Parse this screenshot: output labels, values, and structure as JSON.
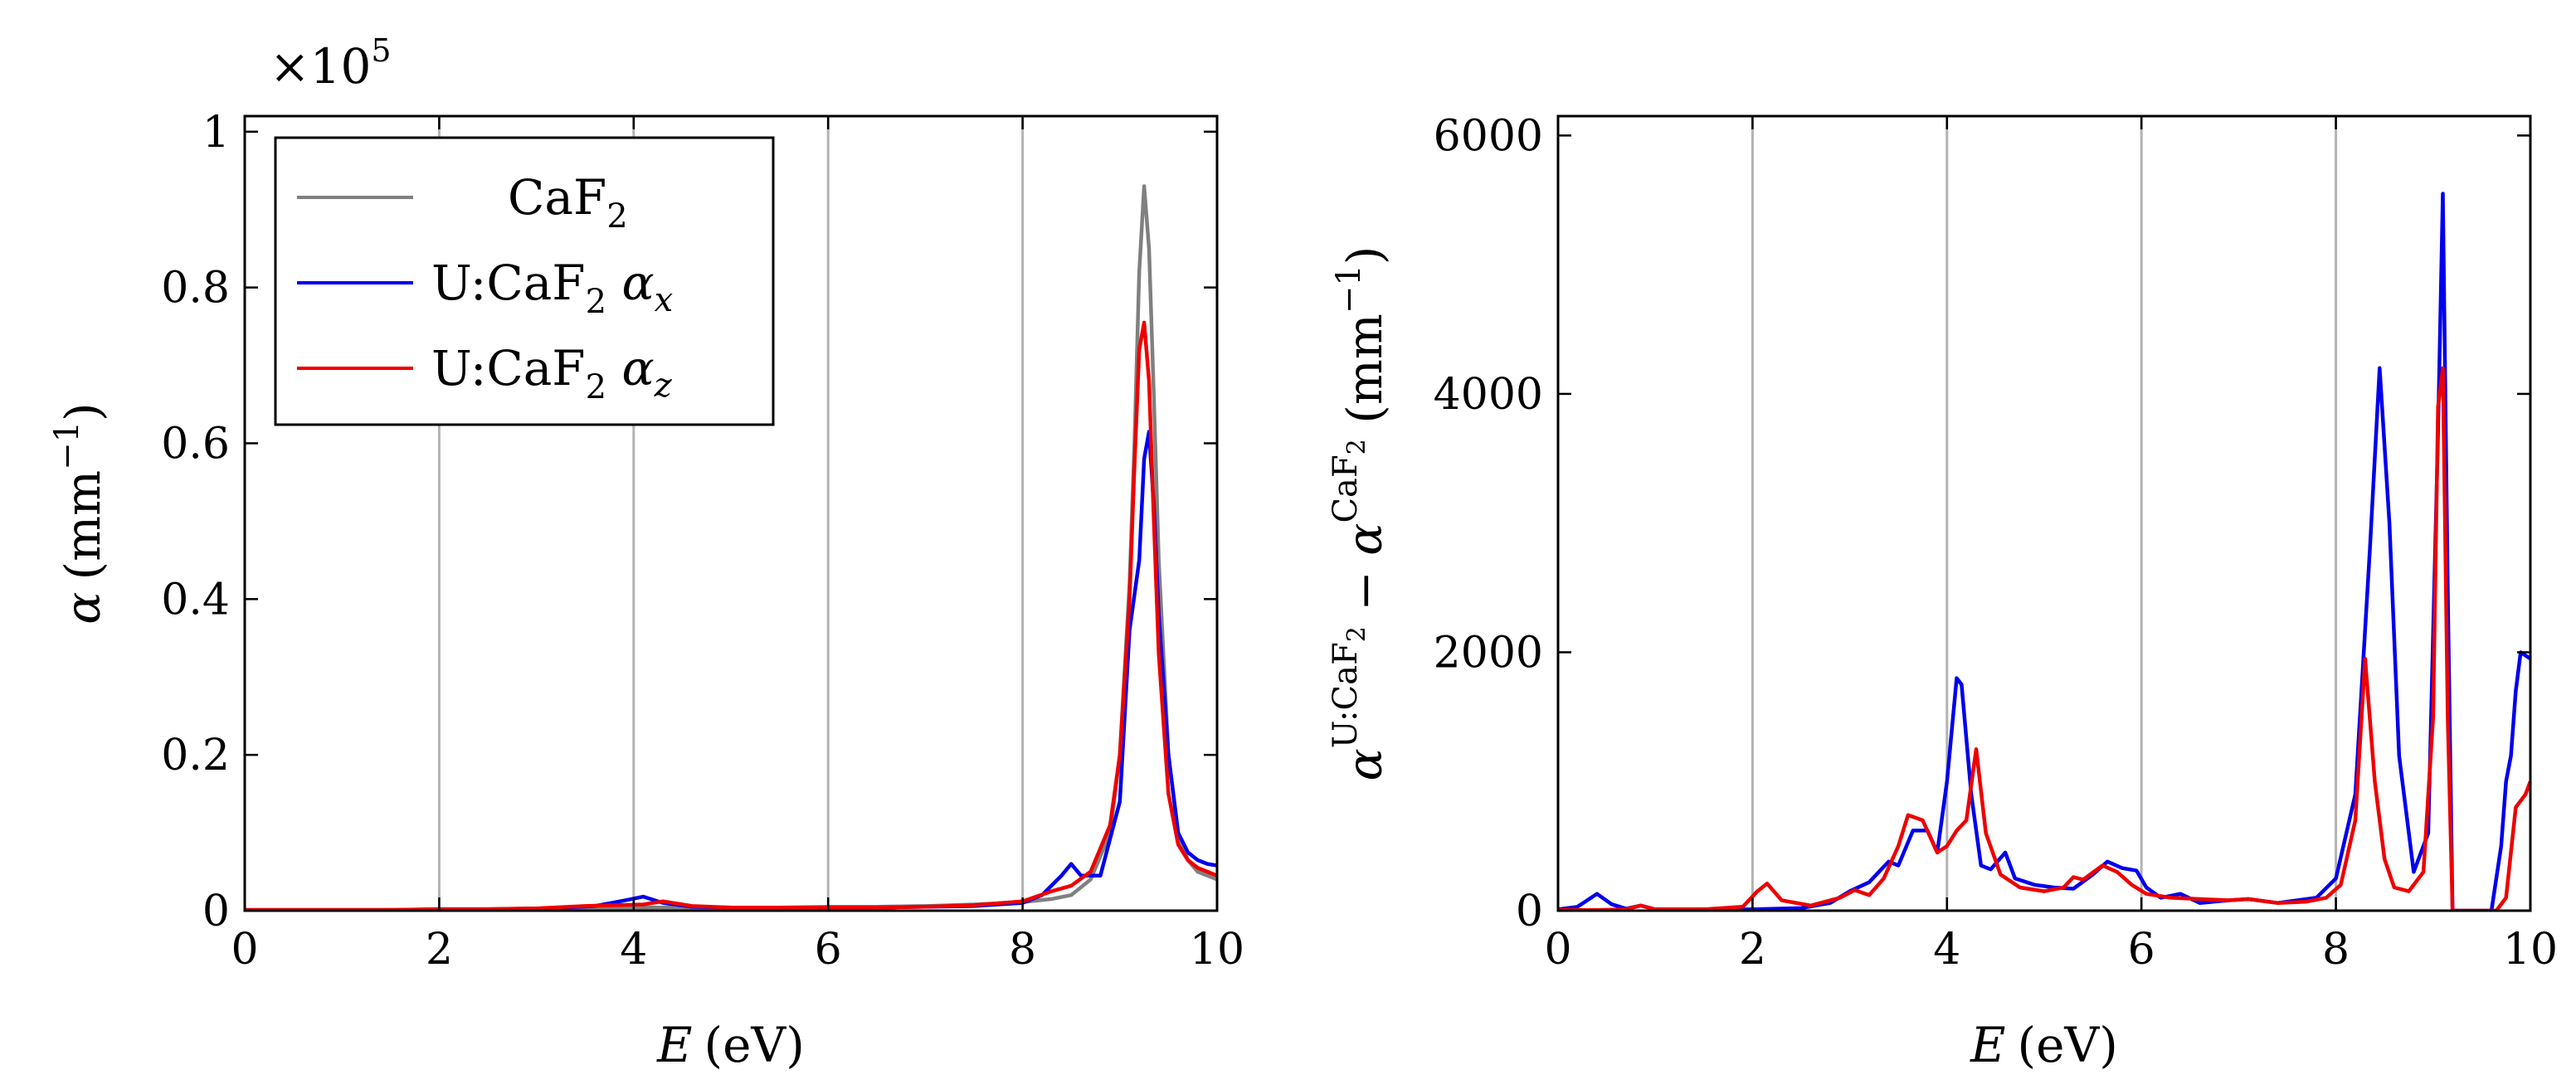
{
  "chart_data": [
    {
      "type": "line",
      "panel": "left",
      "title": "",
      "xlabel": "E (eV)",
      "xlabel_parts": {
        "var": "E",
        "unit": "(eV)"
      },
      "ylabel": "α (mm⁻¹)",
      "ylabel_parts": {
        "var": "α",
        "unit": "(mm",
        "exp": "−1",
        "close": ")"
      },
      "y_multiplier": "×10^5",
      "y_multiplier_parts": {
        "base": "×10",
        "exp": "5"
      },
      "xlim": [
        0,
        10
      ],
      "ylim": [
        0,
        1.02
      ],
      "xticks": [
        0,
        2,
        4,
        6,
        8,
        10
      ],
      "xtick_labels": [
        "0",
        "2",
        "4",
        "6",
        "8",
        "10"
      ],
      "yticks": [
        0,
        0.2,
        0.4,
        0.6,
        0.8,
        1
      ],
      "ytick_labels": [
        "0",
        "0.2",
        "0.4",
        "0.6",
        "0.8",
        "1"
      ],
      "grid": "x",
      "legend_position": "top-left",
      "series": [
        {
          "name": "CaF2",
          "label_parts": {
            "pre": "CaF",
            "sub": "2",
            "post": "",
            "greek": "",
            "gsub": ""
          },
          "color": "#808080",
          "x": [
            0,
            0.5,
            1,
            1.5,
            2,
            2.5,
            3,
            3.5,
            4,
            4.5,
            5,
            5.5,
            6,
            6.5,
            7,
            7.5,
            8,
            8.3,
            8.5,
            8.7,
            8.9,
            9.0,
            9.1,
            9.15,
            9.2,
            9.25,
            9.3,
            9.35,
            9.4,
            9.5,
            9.6,
            9.7,
            9.8,
            9.9,
            10
          ],
          "y": [
            0.001,
            0.001,
            0.001,
            0.001,
            0.002,
            0.002,
            0.003,
            0.003,
            0.004,
            0.004,
            0.004,
            0.004,
            0.005,
            0.005,
            0.006,
            0.008,
            0.011,
            0.015,
            0.02,
            0.04,
            0.1,
            0.2,
            0.42,
            0.6,
            0.82,
            0.93,
            0.85,
            0.66,
            0.45,
            0.2,
            0.1,
            0.065,
            0.05,
            0.045,
            0.04
          ]
        },
        {
          "name": "U:CaF2 αx",
          "label_parts": {
            "pre": "U:CaF",
            "sub": "2",
            "post": " ",
            "greek": "α",
            "gsub": "x"
          },
          "color": "#0000ee",
          "x": [
            0,
            0.5,
            1,
            1.5,
            2,
            2.5,
            3,
            3.3,
            3.6,
            3.9,
            4.1,
            4.3,
            4.6,
            5,
            5.5,
            6,
            6.5,
            7,
            7.5,
            8,
            8.2,
            8.4,
            8.5,
            8.6,
            8.8,
            9.0,
            9.1,
            9.2,
            9.25,
            9.3,
            9.35,
            9.4,
            9.5,
            9.6,
            9.7,
            9.8,
            9.9,
            10
          ],
          "y": [
            0.001,
            0.001,
            0.001,
            0.001,
            0.001,
            0.001,
            0.002,
            0.004,
            0.006,
            0.013,
            0.018,
            0.01,
            0.005,
            0.004,
            0.004,
            0.004,
            0.004,
            0.005,
            0.006,
            0.01,
            0.02,
            0.045,
            0.06,
            0.045,
            0.045,
            0.14,
            0.36,
            0.45,
            0.58,
            0.615,
            0.52,
            0.38,
            0.2,
            0.1,
            0.075,
            0.065,
            0.06,
            0.058
          ]
        },
        {
          "name": "U:CaF2 αz",
          "label_parts": {
            "pre": "U:CaF",
            "sub": "2",
            "post": " ",
            "greek": "α",
            "gsub": "z"
          },
          "color": "#ee0000",
          "x": [
            0,
            0.5,
            1,
            1.5,
            2,
            2.5,
            3,
            3.5,
            3.8,
            4.1,
            4.3,
            4.6,
            5,
            5.5,
            6,
            6.5,
            7,
            7.5,
            8,
            8.3,
            8.5,
            8.7,
            8.9,
            9.0,
            9.1,
            9.15,
            9.2,
            9.25,
            9.3,
            9.35,
            9.4,
            9.5,
            9.6,
            9.7,
            9.8,
            9.9,
            10
          ],
          "y": [
            0.001,
            0.001,
            0.001,
            0.001,
            0.002,
            0.002,
            0.003,
            0.006,
            0.007,
            0.008,
            0.012,
            0.006,
            0.004,
            0.004,
            0.004,
            0.004,
            0.005,
            0.007,
            0.012,
            0.025,
            0.032,
            0.05,
            0.11,
            0.2,
            0.4,
            0.57,
            0.72,
            0.755,
            0.68,
            0.5,
            0.33,
            0.15,
            0.085,
            0.065,
            0.055,
            0.05,
            0.045
          ]
        }
      ]
    },
    {
      "type": "line",
      "panel": "right",
      "title": "",
      "xlabel": "E (eV)",
      "xlabel_parts": {
        "var": "E",
        "unit": "(eV)"
      },
      "ylabel": "α^{U:CaF2} − α^{CaF2} (mm⁻¹)",
      "ylabel_parts": {
        "a1": "α",
        "sup1": "U:CaF",
        "sup1sub": "2",
        "minus": " − ",
        "a2": "α",
        "sup2": "CaF",
        "sup2sub": "2",
        "unit": " (mm",
        "exp": "−1",
        "close": ")"
      },
      "xlim": [
        0,
        10
      ],
      "ylim": [
        0,
        6150
      ],
      "xticks": [
        0,
        2,
        4,
        6,
        8,
        10
      ],
      "xtick_labels": [
        "0",
        "2",
        "4",
        "6",
        "8",
        "10"
      ],
      "yticks": [
        0,
        2000,
        4000,
        6000
      ],
      "ytick_labels": [
        "0",
        "2000",
        "4000",
        "6000"
      ],
      "grid": "x",
      "series": [
        {
          "name": "U:CaF2 αx",
          "color": "#0000ee",
          "x": [
            0,
            0.2,
            0.4,
            0.55,
            0.7,
            0.85,
            1.0,
            1.5,
            2,
            2.5,
            2.8,
            3.0,
            3.2,
            3.4,
            3.5,
            3.65,
            3.8,
            3.9,
            4.0,
            4.1,
            4.15,
            4.25,
            4.35,
            4.45,
            4.6,
            4.7,
            4.9,
            5.1,
            5.3,
            5.5,
            5.65,
            5.8,
            5.95,
            6.05,
            6.2,
            6.4,
            6.6,
            6.9,
            7.1,
            7.4,
            7.8,
            8.0,
            8.2,
            8.35,
            8.45,
            8.55,
            8.65,
            8.8,
            8.95,
            9.05,
            9.1,
            9.15,
            9.2,
            9.6,
            9.7,
            9.75,
            9.8,
            9.85,
            9.9,
            10
          ],
          "y": [
            10,
            30,
            130,
            50,
            15,
            40,
            10,
            10,
            10,
            20,
            60,
            150,
            220,
            380,
            350,
            620,
            620,
            450,
            1000,
            1800,
            1750,
            900,
            350,
            320,
            450,
            250,
            200,
            180,
            170,
            280,
            380,
            330,
            310,
            180,
            100,
            130,
            60,
            80,
            90,
            60,
            100,
            250,
            900,
            2800,
            4200,
            3000,
            1200,
            300,
            600,
            3700,
            5550,
            2500,
            0,
            0,
            500,
            1000,
            1200,
            1700,
            2000,
            1950
          ]
        },
        {
          "name": "U:CaF2 αz",
          "color": "#ee0000",
          "x": [
            0,
            0.4,
            0.7,
            0.85,
            1.0,
            1.5,
            1.9,
            2.05,
            2.15,
            2.3,
            2.6,
            2.9,
            3.05,
            3.2,
            3.35,
            3.5,
            3.6,
            3.75,
            3.9,
            4.0,
            4.1,
            4.2,
            4.3,
            4.4,
            4.55,
            4.75,
            5.0,
            5.2,
            5.3,
            5.4,
            5.6,
            5.75,
            5.9,
            6.05,
            6.3,
            6.6,
            6.9,
            7.1,
            7.4,
            7.7,
            7.9,
            8.05,
            8.2,
            8.3,
            8.4,
            8.5,
            8.6,
            8.75,
            8.9,
            9.0,
            9.05,
            9.1,
            9.15,
            9.2,
            9.65,
            9.75,
            9.85,
            9.95,
            10
          ],
          "y": [
            5,
            5,
            10,
            40,
            10,
            10,
            30,
            150,
            210,
            80,
            40,
            100,
            160,
            120,
            250,
            500,
            740,
            700,
            450,
            500,
            620,
            700,
            1250,
            600,
            280,
            180,
            150,
            180,
            260,
            240,
            350,
            300,
            200,
            130,
            100,
            90,
            80,
            90,
            60,
            70,
            100,
            200,
            700,
            1950,
            1000,
            400,
            180,
            150,
            300,
            1500,
            3900,
            4200,
            1500,
            0,
            0,
            100,
            800,
            900,
            1000
          ]
        }
      ]
    }
  ]
}
